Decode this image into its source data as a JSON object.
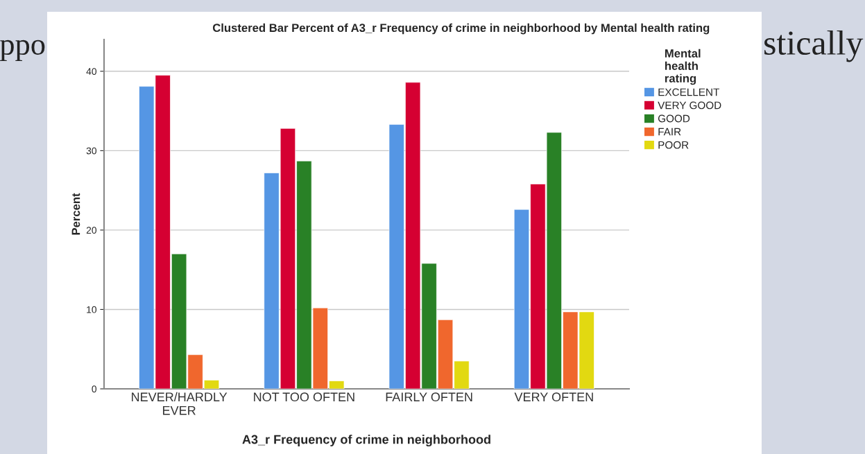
{
  "chart_data": {
    "type": "bar",
    "title": "Clustered Bar Percent of A3_r Frequency of crime in neighborhood by Mental health rating",
    "xlabel": "A3_r Frequency of crime in neighborhood",
    "ylabel": "Percent",
    "legend_title": "Mental\nhealth\nrating",
    "categories": [
      "NEVER/HARDLY\nEVER",
      "NOT TOO OFTEN",
      "FAIRLY OFTEN",
      "VERY OFTEN"
    ],
    "series": [
      {
        "name": "EXCELLENT",
        "color": "#5596e4",
        "values": [
          38.1,
          27.2,
          33.3,
          22.6
        ]
      },
      {
        "name": "VERY GOOD",
        "color": "#d50032",
        "values": [
          39.5,
          32.8,
          38.6,
          25.8
        ]
      },
      {
        "name": "GOOD",
        "color": "#298126",
        "values": [
          17.0,
          28.7,
          15.8,
          32.3
        ]
      },
      {
        "name": "FAIR",
        "color": "#f0672d",
        "values": [
          4.3,
          10.2,
          8.7,
          9.7
        ]
      },
      {
        "name": "POOR",
        "color": "#e2d911",
        "values": [
          1.1,
          1.0,
          3.5,
          9.7
        ]
      }
    ],
    "ylim": [
      0,
      44
    ],
    "yticks": [
      0,
      10,
      20,
      30,
      40
    ],
    "grid": "y",
    "legend": "top right",
    "annotations": [
      "ppo",
      "stically"
    ]
  }
}
